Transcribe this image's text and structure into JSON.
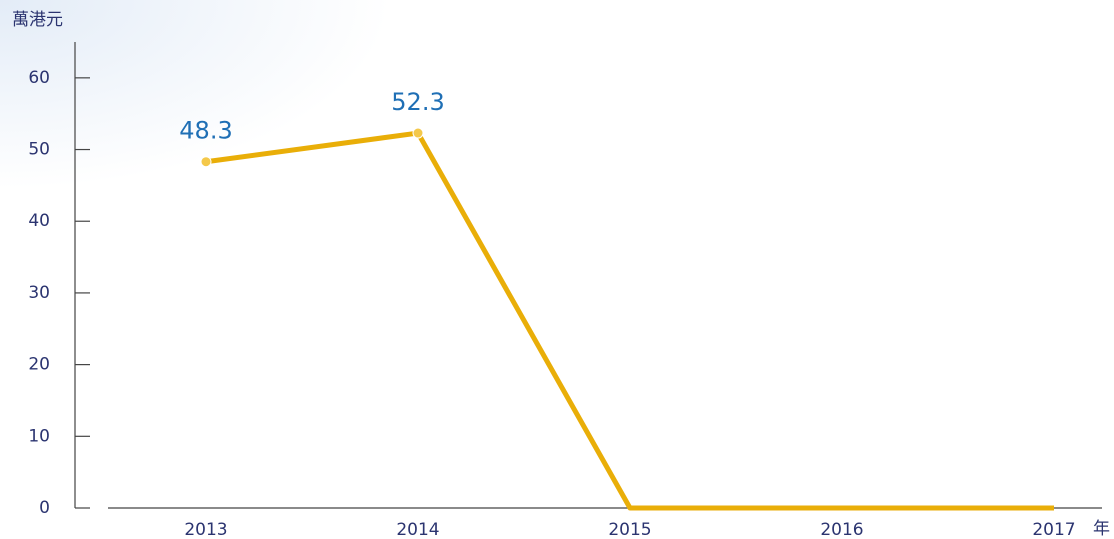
{
  "chart_data": {
    "type": "line",
    "y_axis_label": "萬港元",
    "x_axis_label": "年",
    "categories": [
      "2013",
      "2014",
      "2015",
      "2016",
      "2017"
    ],
    "values": [
      48.3,
      52.3,
      0,
      0,
      0
    ],
    "value_labels": [
      "48.3",
      "52.3",
      null,
      null,
      null
    ],
    "color": "#e9ae08",
    "ylim": [
      0,
      65
    ],
    "yticks": [
      0,
      10,
      20,
      30,
      40,
      50,
      60
    ]
  }
}
